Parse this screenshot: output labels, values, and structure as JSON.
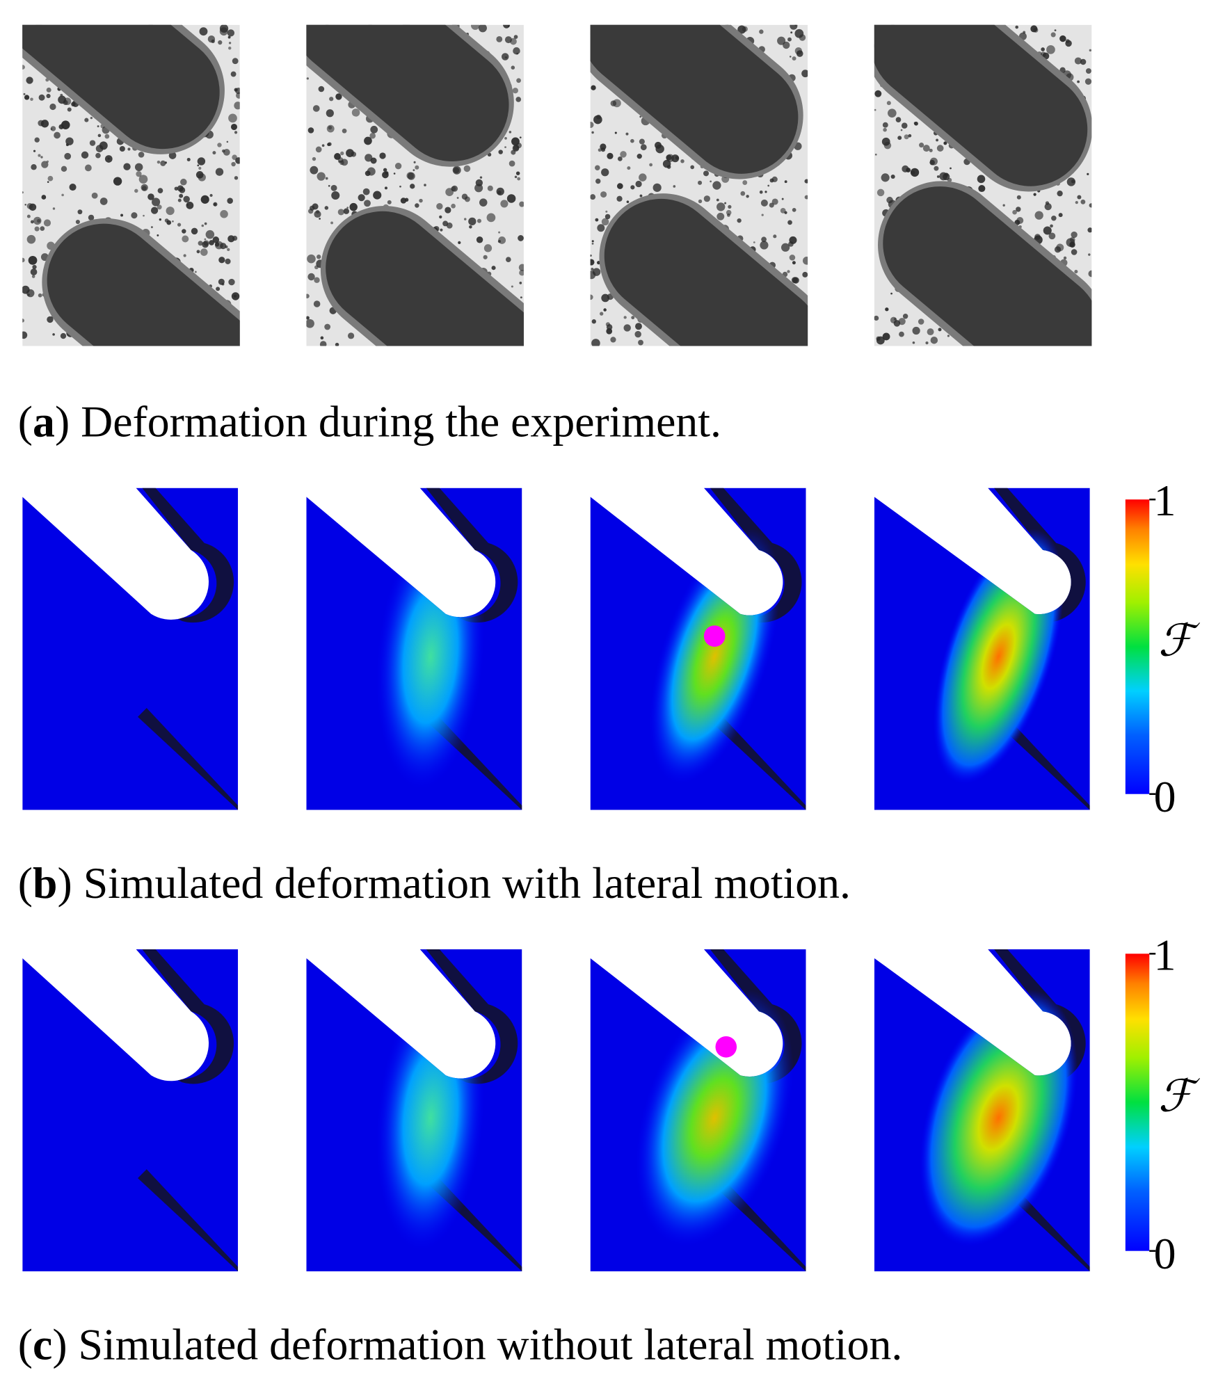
{
  "panels": [
    {
      "caption": {
        "open": "(",
        "label": "a",
        "close": ")",
        "text": " Deformation during the experiment."
      }
    },
    {
      "caption": {
        "open": "(",
        "label": "b",
        "close": ")",
        "text": " Simulated deformation with lateral motion."
      },
      "colorbar": {
        "max": "1",
        "min": "0",
        "symbol": "ℱ"
      }
    },
    {
      "caption": {
        "open": "(",
        "label": "c",
        "close": ")",
        "text": " Simulated deformation without lateral motion."
      },
      "colorbar": {
        "max": "1",
        "min": "0",
        "symbol": "ℱ"
      }
    }
  ]
}
